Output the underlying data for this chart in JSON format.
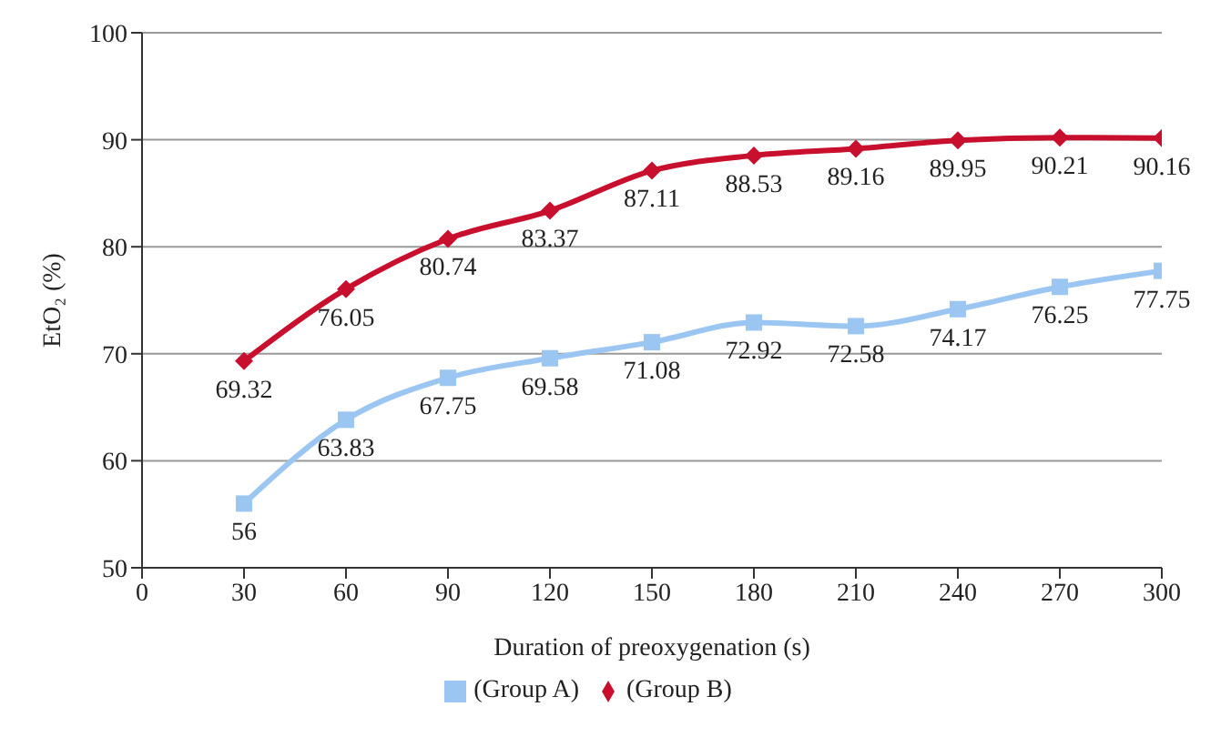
{
  "chart_data": {
    "type": "line",
    "xlabel": "Duration of preoxygenation (s)",
    "ylabel": "EtO₂ (%)",
    "x": [
      30,
      60,
      90,
      120,
      150,
      180,
      210,
      240,
      270,
      300
    ],
    "series": [
      {
        "name": "(Group A)",
        "color": "#9cc6f2",
        "marker": "square",
        "values": [
          56,
          63.83,
          67.75,
          69.58,
          71.08,
          72.92,
          72.58,
          74.17,
          76.25,
          77.75
        ]
      },
      {
        "name": "(Group B)",
        "color": "#c8102e",
        "marker": "diamond",
        "values": [
          69.32,
          76.05,
          80.74,
          83.37,
          87.11,
          88.53,
          89.16,
          89.95,
          90.21,
          90.16
        ]
      }
    ],
    "xlim": [
      0,
      300
    ],
    "xticks": [
      0,
      30,
      60,
      90,
      120,
      150,
      180,
      210,
      240,
      270,
      300
    ],
    "ylim": [
      50,
      100
    ],
    "yticks": [
      50,
      60,
      70,
      80,
      90,
      100
    ],
    "grid": "y",
    "legend": "bottom",
    "data_labels": true,
    "line_style": "solid"
  }
}
